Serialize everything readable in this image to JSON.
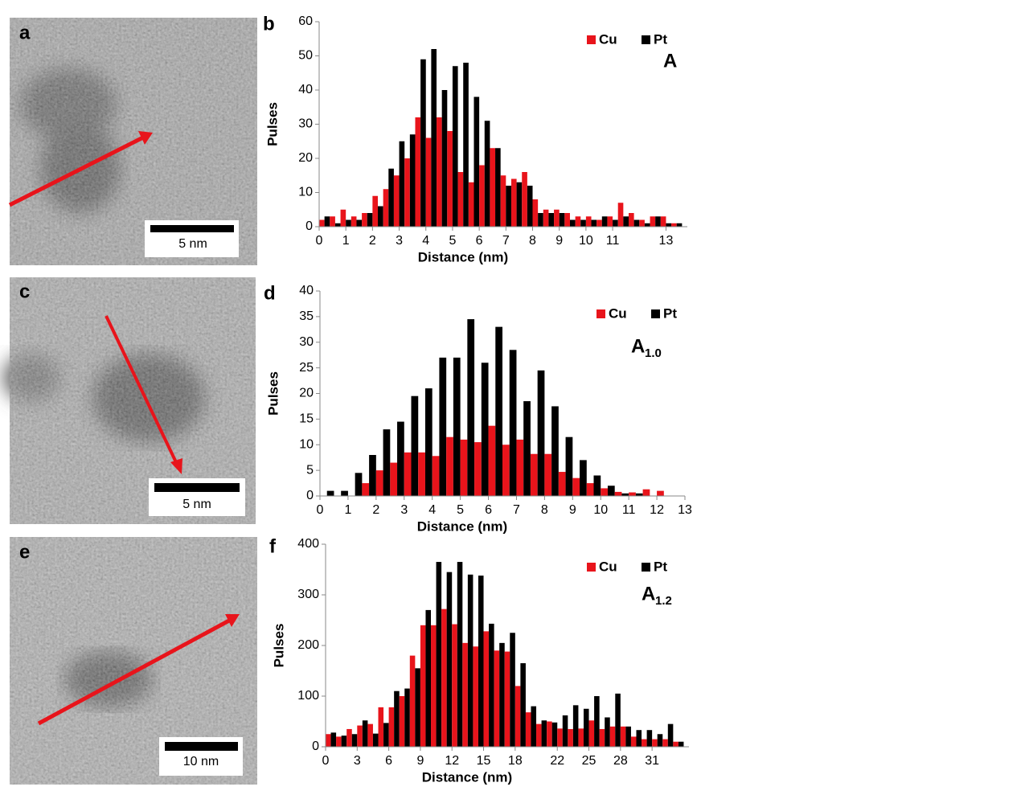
{
  "images": [
    {
      "label": "a",
      "scale_bar": "5 nm"
    },
    {
      "label": "c",
      "scale_bar": "5 nm"
    },
    {
      "label": "e",
      "scale_bar": "10 nm"
    }
  ],
  "chart_data": [
    {
      "type": "bar",
      "panel": "b",
      "annotation": {
        "text": "A"
      },
      "xlabel": "Distance (nm)",
      "ylabel": "Pulses",
      "x": [
        0.2,
        0.6,
        1.0,
        1.4,
        1.8,
        2.2,
        2.6,
        3.0,
        3.4,
        3.8,
        4.2,
        4.6,
        5.0,
        5.4,
        5.8,
        6.2,
        6.6,
        7.0,
        7.4,
        7.8,
        8.2,
        8.6,
        9.0,
        9.4,
        9.8,
        10.2,
        10.6,
        11.0,
        11.4,
        11.8,
        12.2,
        12.6,
        13.0,
        13.4
      ],
      "xlim": [
        0,
        13.8
      ],
      "xticks": [
        0,
        1,
        2,
        3,
        4,
        5,
        6,
        7,
        8,
        9,
        10,
        11,
        13
      ],
      "ylim": [
        0,
        60
      ],
      "yticks": [
        0,
        10,
        20,
        30,
        40,
        50,
        60
      ],
      "series": [
        {
          "name": "Cu",
          "color": "#e8141b",
          "values": [
            2,
            3,
            5,
            3,
            4,
            9,
            11,
            15,
            20,
            32,
            26,
            32,
            28,
            16,
            13,
            18,
            23,
            15,
            14,
            16,
            8,
            5,
            5,
            4,
            3,
            3,
            2,
            3,
            7,
            4,
            2,
            3,
            3,
            1
          ]
        },
        {
          "name": "Pt",
          "color": "#000000",
          "values": [
            3,
            1,
            2,
            2,
            4,
            6,
            17,
            25,
            27,
            49,
            52,
            40,
            47,
            48,
            38,
            31,
            23,
            12,
            13,
            12,
            4,
            4,
            4,
            2,
            2,
            2,
            3,
            2,
            3,
            2,
            1,
            3,
            1,
            1
          ]
        }
      ]
    },
    {
      "type": "bar",
      "panel": "d",
      "annotation": {
        "text": "A",
        "subscript": "1.0"
      },
      "xlabel": "Distance  (nm)",
      "ylabel": "Pulses",
      "x": [
        0.25,
        0.75,
        1.25,
        1.75,
        2.25,
        2.75,
        3.25,
        3.75,
        4.25,
        4.75,
        5.25,
        5.75,
        6.25,
        6.75,
        7.25,
        7.75,
        8.25,
        8.75,
        9.25,
        9.75,
        10.25,
        10.75,
        11.25,
        11.75,
        12.25,
        12.75
      ],
      "xlim": [
        0,
        13
      ],
      "xticks": [
        0,
        1,
        2,
        3,
        4,
        5,
        6,
        7,
        8,
        9,
        10,
        11,
        12,
        13
      ],
      "ylim": [
        0,
        40
      ],
      "yticks": [
        0,
        5,
        10,
        15,
        20,
        25,
        30,
        35,
        40
      ],
      "series": [
        {
          "name": "Cu",
          "color": "#e8141b",
          "values": [
            0,
            0,
            0,
            2.5,
            5,
            6.5,
            8.5,
            8.5,
            7.8,
            11.5,
            11,
            10.5,
            13.7,
            10,
            11,
            8.2,
            8.2,
            4.7,
            3.5,
            2.5,
            1.5,
            0.8,
            0.7,
            1.3,
            1,
            0
          ]
        },
        {
          "name": "Pt",
          "color": "#000000",
          "values": [
            1,
            1,
            4.5,
            8,
            13,
            14.5,
            19.5,
            21,
            27,
            27,
            34.5,
            26,
            33,
            28.5,
            18.5,
            24.5,
            17.5,
            11.5,
            7,
            4,
            2,
            0.5,
            0.5,
            0,
            0,
            0
          ]
        }
      ]
    },
    {
      "type": "bar",
      "panel": "f",
      "annotation": {
        "text": "A",
        "subscript": "1.2"
      },
      "xlabel": "Distance (nm)",
      "ylabel": "Pulses",
      "x": [
        0.5,
        1.5,
        2.5,
        3.5,
        4.5,
        5.5,
        6.5,
        7.5,
        8.5,
        9.5,
        10.5,
        11.5,
        12.5,
        13.5,
        14.5,
        15.5,
        16.5,
        17.5,
        18.5,
        19.5,
        20.5,
        21.5,
        22.5,
        23.5,
        24.5,
        25.5,
        26.5,
        27.5,
        28.5,
        29.5,
        30.5,
        31.5,
        32.5,
        33.5
      ],
      "xlim": [
        0,
        34.5
      ],
      "xticks": [
        0,
        3,
        6,
        9,
        12,
        15,
        18,
        22,
        25,
        28,
        31
      ],
      "ylim": [
        0,
        400
      ],
      "yticks": [
        0,
        100,
        200,
        300,
        400
      ],
      "series": [
        {
          "name": "Cu",
          "color": "#e8141b",
          "values": [
            25,
            20,
            35,
            42,
            45,
            78,
            78,
            100,
            180,
            240,
            240,
            272,
            242,
            205,
            198,
            228,
            190,
            188,
            120,
            68,
            45,
            50,
            36,
            35,
            36,
            52,
            35,
            40,
            40,
            20,
            15,
            15,
            15,
            10
          ]
        },
        {
          "name": "Pt",
          "color": "#000000",
          "values": [
            28,
            22,
            25,
            52,
            26,
            47,
            110,
            115,
            155,
            270,
            365,
            345,
            365,
            340,
            338,
            243,
            205,
            225,
            165,
            80,
            52,
            48,
            62,
            82,
            75,
            100,
            58,
            105,
            40,
            33,
            33,
            25,
            45,
            10
          ]
        }
      ]
    }
  ]
}
